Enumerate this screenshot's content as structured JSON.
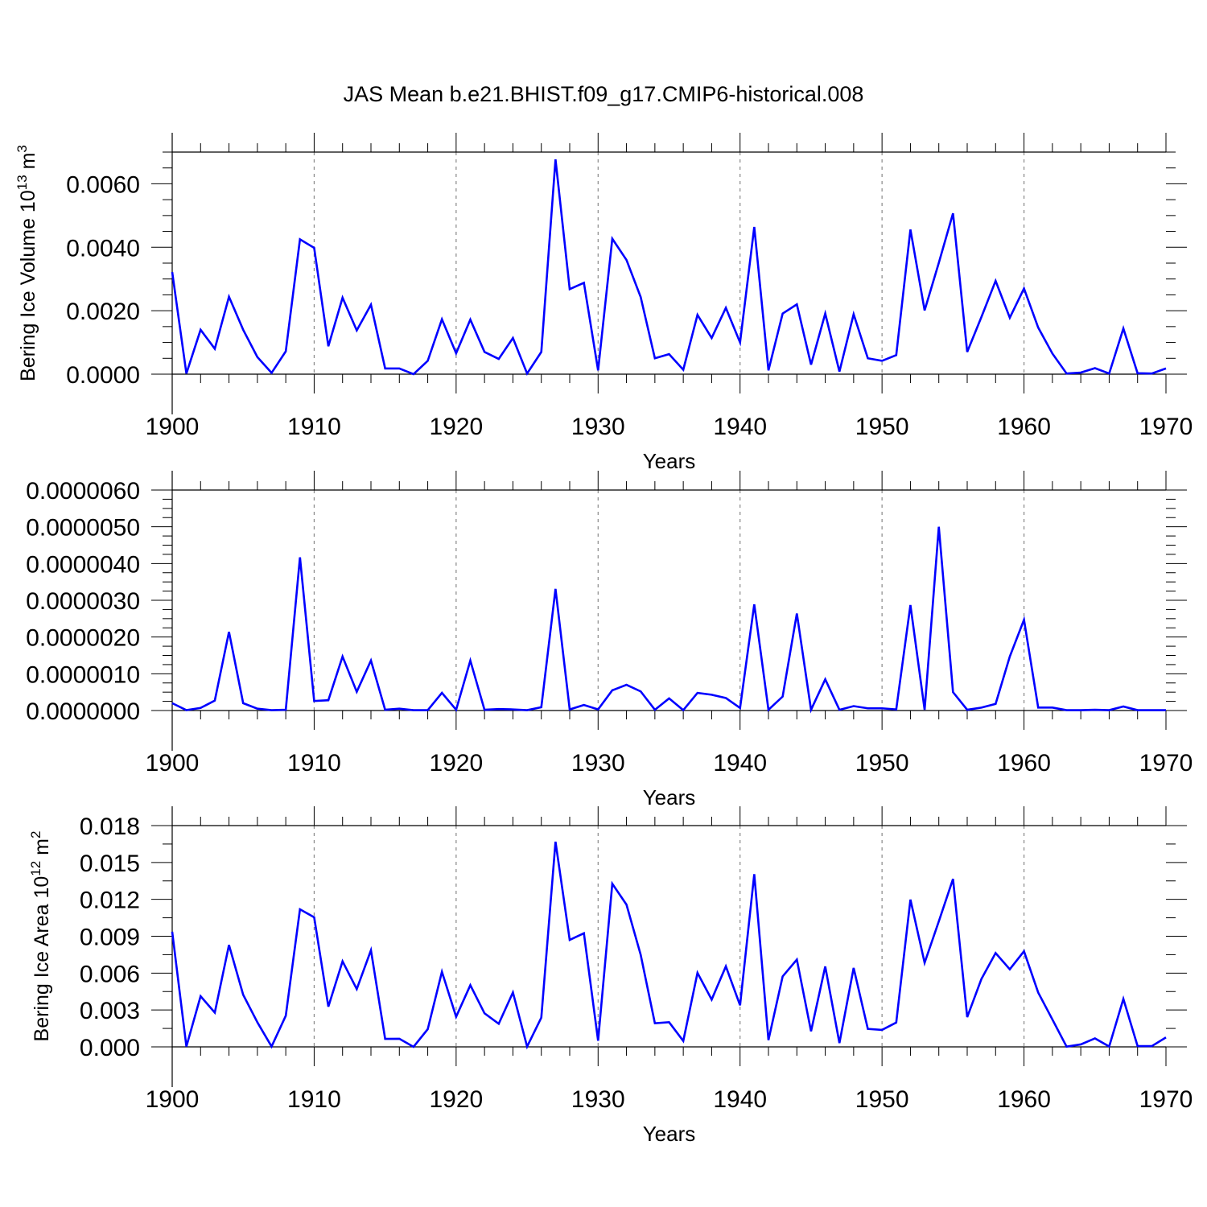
{
  "figure": {
    "title": "JAS Mean b.e21.BHIST.f09_g17.CMIP6-historical.008",
    "line_color": "#0000ff",
    "grid_color": "#888888"
  },
  "chart_data": [
    {
      "type": "line",
      "ylabel": "Bering Ice Volume 10",
      "ylabel_sup": "13",
      "ylabel_unit": "m",
      "ylabel_unit_sup": "3",
      "xlabel": "Years",
      "xlim": [
        1900,
        1970
      ],
      "ylim": [
        0,
        0.007
      ],
      "xticks": [
        1900,
        1910,
        1920,
        1930,
        1940,
        1950,
        1960,
        1970
      ],
      "xtick_labels": [
        "1900",
        "1910",
        "1920",
        "1930",
        "1940",
        "1950",
        "1960",
        "1970"
      ],
      "yticks": [
        0,
        0.002,
        0.004,
        0.006
      ],
      "ytick_labels": [
        "0.0000",
        "0.0020",
        "0.0040",
        "0.0060"
      ],
      "grid": "vertical dashed at decades",
      "x": [
        1900,
        1901,
        1902,
        1903,
        1904,
        1905,
        1906,
        1907,
        1908,
        1909,
        1910,
        1911,
        1912,
        1913,
        1914,
        1915,
        1916,
        1917,
        1918,
        1919,
        1920,
        1921,
        1922,
        1923,
        1924,
        1925,
        1926,
        1927,
        1928,
        1929,
        1930,
        1931,
        1932,
        1933,
        1934,
        1935,
        1936,
        1937,
        1938,
        1939,
        1940,
        1941,
        1942,
        1943,
        1944,
        1945,
        1946,
        1947,
        1948,
        1949,
        1950,
        1951,
        1952,
        1953,
        1954,
        1955,
        1956,
        1957,
        1958,
        1959,
        1960,
        1961,
        1962,
        1963,
        1964,
        1965,
        1966,
        1967,
        1968,
        1969,
        1970
      ],
      "values": [
        0.00322,
        2e-05,
        0.0014,
        0.0008,
        0.00244,
        0.0014,
        0.00054,
        4e-05,
        0.00072,
        0.00425,
        0.00398,
        0.00088,
        0.00241,
        0.00138,
        0.00219,
        0.00018,
        0.00018,
        0.0,
        0.00042,
        0.00173,
        0.00066,
        0.00172,
        0.0007,
        0.00048,
        0.00114,
        2e-05,
        0.0007,
        0.00677,
        0.00268,
        0.00288,
        0.00012,
        0.00427,
        0.0036,
        0.00243,
        0.0005,
        0.00063,
        0.00014,
        0.00187,
        0.00114,
        0.00209,
        0.001,
        0.00464,
        0.00012,
        0.00191,
        0.0022,
        0.0003,
        0.00191,
        8e-05,
        0.00189,
        0.0005,
        0.00042,
        0.0006,
        0.00456,
        0.00201,
        0.00351,
        0.00507,
        0.0007,
        0.0018,
        0.00294,
        0.00178,
        0.0027,
        0.00147,
        0.00065,
        2e-05,
        5e-05,
        0.00019,
        2e-05,
        0.00144,
        3e-05,
        2e-05,
        0.00018
      ]
    },
    {
      "type": "line",
      "ylabel": "",
      "xlabel": "Years",
      "xlim": [
        1900,
        1970
      ],
      "ylim": [
        0,
        6e-06
      ],
      "xticks": [
        1900,
        1910,
        1920,
        1930,
        1940,
        1950,
        1960,
        1970
      ],
      "xtick_labels": [
        "1900",
        "1910",
        "1920",
        "1930",
        "1940",
        "1950",
        "1960",
        "1970"
      ],
      "yticks": [
        0,
        1e-06,
        2e-06,
        3e-06,
        4e-06,
        5e-06,
        6e-06
      ],
      "ytick_labels": [
        "0.0000000",
        "0.0000010",
        "0.0000020",
        "0.0000030",
        "0.0000040",
        "0.0000050",
        "0.0000060"
      ],
      "grid": "vertical dashed at decades",
      "x": [
        1900,
        1901,
        1902,
        1903,
        1904,
        1905,
        1906,
        1907,
        1908,
        1909,
        1910,
        1911,
        1912,
        1913,
        1914,
        1915,
        1916,
        1917,
        1918,
        1919,
        1920,
        1921,
        1922,
        1923,
        1924,
        1925,
        1926,
        1927,
        1928,
        1929,
        1930,
        1931,
        1932,
        1933,
        1934,
        1935,
        1936,
        1937,
        1938,
        1939,
        1940,
        1941,
        1942,
        1943,
        1944,
        1945,
        1946,
        1947,
        1948,
        1949,
        1950,
        1951,
        1952,
        1953,
        1954,
        1955,
        1956,
        1957,
        1958,
        1959,
        1960,
        1961,
        1962,
        1963,
        1964,
        1965,
        1966,
        1967,
        1968,
        1969,
        1970
      ],
      "values": [
        2e-07,
        1e-08,
        7e-08,
        2.7e-07,
        2.14e-06,
        2e-07,
        5e-08,
        1e-08,
        2e-08,
        4.17e-06,
        2.6e-07,
        2.8e-07,
        1.47e-06,
        5.1e-07,
        1.36e-06,
        2e-08,
        5e-08,
        1e-08,
        1e-08,
        4.8e-07,
        2e-08,
        1.36e-06,
        2e-08,
        4e-08,
        3e-08,
        1e-08,
        9e-08,
        3.31e-06,
        3e-08,
        1.5e-07,
        3e-08,
        5.5e-07,
        7e-07,
        5.2e-07,
        2e-08,
        3.3e-07,
        1e-08,
        4.8e-07,
        4.3e-07,
        3.4e-07,
        7e-08,
        2.89e-06,
        2e-08,
        3.8e-07,
        2.64e-06,
        2e-08,
        8.5e-07,
        2e-08,
        1.2e-07,
        6e-08,
        6e-08,
        3e-08,
        2.87e-06,
        2e-08,
        5e-06,
        5e-07,
        2e-08,
        8e-08,
        1.8e-07,
        1.47e-06,
        2.47e-06,
        8e-08,
        8e-08,
        1e-08,
        1e-08,
        2e-08,
        1e-08,
        1.1e-07,
        1e-08,
        1e-08,
        1e-08
      ]
    },
    {
      "type": "line",
      "ylabel": "Bering Ice Area 10",
      "ylabel_sup": "12",
      "ylabel_unit": "m",
      "ylabel_unit_sup": "2",
      "xlabel": "Years",
      "xlim": [
        1900,
        1970
      ],
      "ylim": [
        0,
        0.018
      ],
      "xticks": [
        1900,
        1910,
        1920,
        1930,
        1940,
        1950,
        1960,
        1970
      ],
      "xtick_labels": [
        "1900",
        "1910",
        "1920",
        "1930",
        "1940",
        "1950",
        "1960",
        "1970"
      ],
      "yticks": [
        0,
        0.003,
        0.006,
        0.009,
        0.012,
        0.015,
        0.018
      ],
      "ytick_labels": [
        "0.000",
        "0.003",
        "0.006",
        "0.009",
        "0.012",
        "0.015",
        "0.018"
      ],
      "grid": "vertical dashed at decades",
      "x": [
        1900,
        1901,
        1902,
        1903,
        1904,
        1905,
        1906,
        1907,
        1908,
        1909,
        1910,
        1911,
        1912,
        1913,
        1914,
        1915,
        1916,
        1917,
        1918,
        1919,
        1920,
        1921,
        1922,
        1923,
        1924,
        1925,
        1926,
        1927,
        1928,
        1929,
        1930,
        1931,
        1932,
        1933,
        1934,
        1935,
        1936,
        1937,
        1938,
        1939,
        1940,
        1941,
        1942,
        1943,
        1944,
        1945,
        1946,
        1947,
        1948,
        1949,
        1950,
        1951,
        1952,
        1953,
        1954,
        1955,
        1956,
        1957,
        1958,
        1959,
        1960,
        1961,
        1962,
        1963,
        1964,
        1965,
        1966,
        1967,
        1968,
        1969,
        1970
      ],
      "values": [
        0.00937,
        3e-05,
        0.00412,
        0.00279,
        0.00829,
        0.00424,
        0.002,
        3e-05,
        0.00253,
        0.01119,
        0.01054,
        0.00327,
        0.00696,
        0.0047,
        0.00786,
        0.00065,
        0.00066,
        0.0,
        0.00144,
        0.00611,
        0.00245,
        0.00502,
        0.00273,
        0.00188,
        0.00443,
        2e-05,
        0.00238,
        0.01669,
        0.0087,
        0.00924,
        0.0005,
        0.01327,
        0.01157,
        0.00749,
        0.00192,
        0.00201,
        0.00048,
        0.00602,
        0.00385,
        0.00655,
        0.00338,
        0.01405,
        0.00055,
        0.00573,
        0.0071,
        0.00127,
        0.00654,
        0.00031,
        0.00642,
        0.00146,
        0.00138,
        0.00198,
        0.01198,
        0.00684,
        0.01021,
        0.01366,
        0.00242,
        0.00552,
        0.00763,
        0.00631,
        0.00778,
        0.00442,
        0.00223,
        2e-05,
        0.0002,
        0.00069,
        3e-05,
        0.0039,
        7e-05,
        6e-05,
        0.00077
      ]
    }
  ]
}
